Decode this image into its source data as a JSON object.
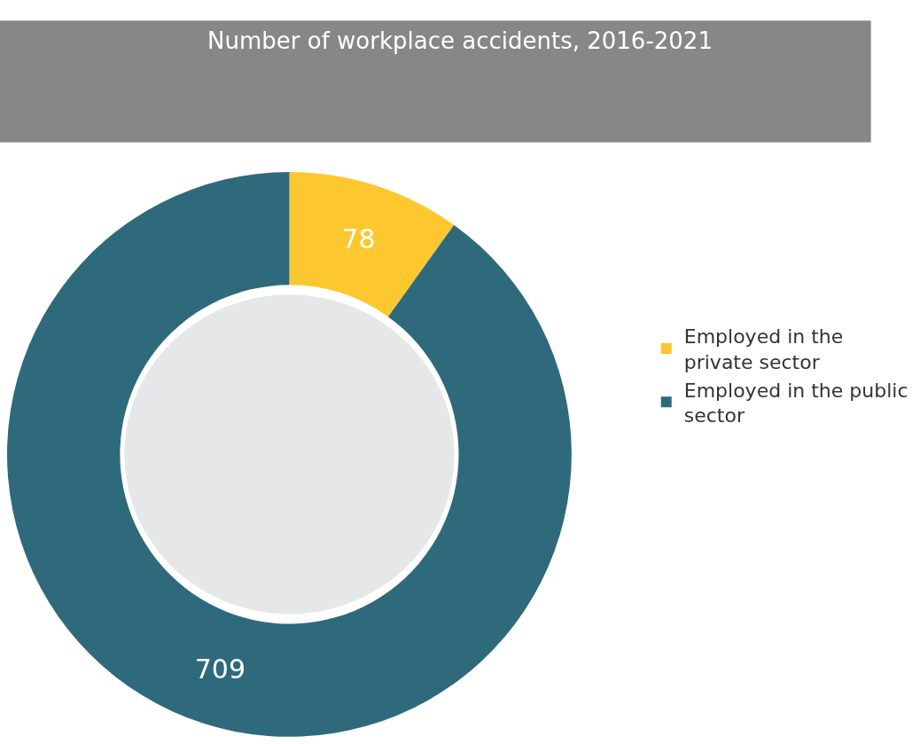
{
  "chart_data": {
    "type": "donut",
    "title": "Number of workplace accidents, 2016-2021",
    "categories": [
      "Employed in the private sector",
      "Employed in the public sector"
    ],
    "values": [
      78,
      709
    ],
    "colors": [
      "#fcc72f",
      "#2e6a7c"
    ],
    "data_labels": true,
    "legend": "right"
  }
}
